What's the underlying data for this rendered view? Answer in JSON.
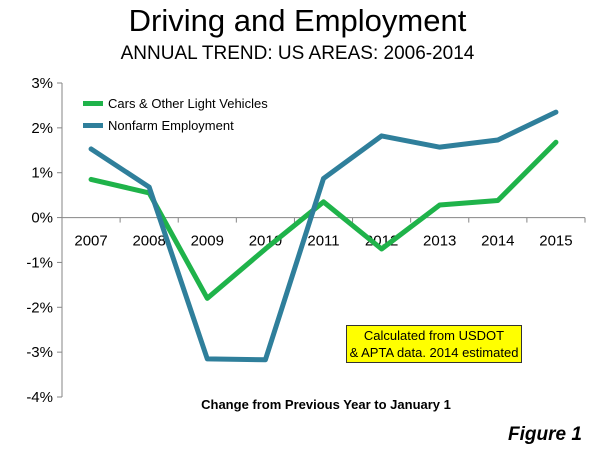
{
  "chart_data": {
    "type": "line",
    "title": "Driving and Employment",
    "subtitle": "ANNUAL TREND: US AREAS: 2006-2014",
    "xlabel": "Change from Previous Year to January 1",
    "ylabel": "",
    "categories": [
      "2007",
      "2008",
      "2009",
      "2010",
      "2011",
      "2012",
      "2013",
      "2014",
      "2015"
    ],
    "yticks": [
      "3%",
      "2%",
      "1%",
      "0%",
      "-1%",
      "-2%",
      "-3%",
      "-4%"
    ],
    "ylim": [
      -4,
      3
    ],
    "grid": false,
    "legend_position": "top-left",
    "series": [
      {
        "name": "Cars & Other Light Vehicles",
        "color": "#1fb34a",
        "values": [
          0.85,
          0.55,
          -1.8,
          -0.7,
          0.35,
          -0.7,
          0.28,
          0.38,
          1.68
        ]
      },
      {
        "name": "Nonfarm Employment",
        "color": "#2f7f9b",
        "values": [
          1.53,
          0.68,
          -3.15,
          -3.17,
          0.87,
          1.82,
          1.57,
          1.73,
          2.35
        ]
      }
    ],
    "annotation": [
      "Calculated from USDOT",
      "& APTA data. 2014 estimated"
    ]
  },
  "figure_label": "Figure 1"
}
